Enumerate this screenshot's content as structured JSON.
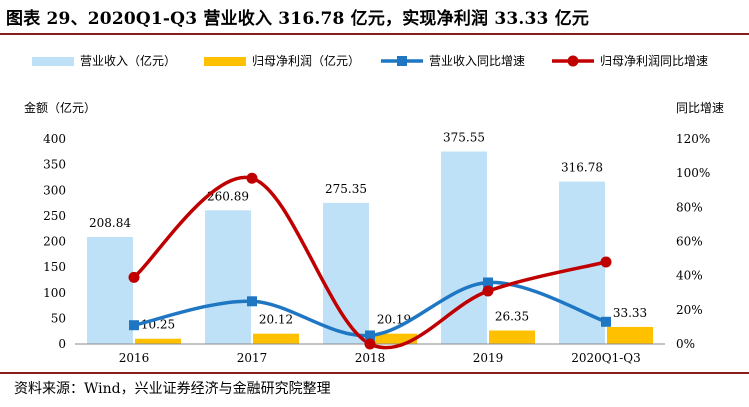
{
  "title": "图表 29、2020Q1-Q3 营业收入 316.78 亿元，实现净利润 33.33 亿元",
  "source": "资料来源：Wind，兴业证券经济与金融研究院整理",
  "colors": {
    "revenue_bar": "#bfe1f7",
    "profit_bar": "#ffc000",
    "revenue_growth_line": "#1f77c4",
    "profit_growth_line": "#c00000",
    "rule": "#8a1c1c"
  },
  "chart_data": {
    "type": "bar",
    "categories": [
      "2016",
      "2017",
      "2018",
      "2019",
      "2020Q1-Q3"
    ],
    "left_axis_label": "金额（亿元）",
    "right_axis_label": "同比增速",
    "left_ticks": [
      "0",
      "50",
      "100",
      "150",
      "200",
      "250",
      "300",
      "350",
      "400"
    ],
    "right_ticks": [
      "0%",
      "20%",
      "40%",
      "60%",
      "80%",
      "100%",
      "120%"
    ],
    "ylim": [
      0,
      400
    ],
    "y2lim": [
      0,
      120
    ],
    "legend_position": "top",
    "series": [
      {
        "name": "营业收入（亿元）",
        "kind": "bar",
        "axis": "left",
        "values": [
          208.84,
          260.89,
          275.35,
          375.55,
          316.78
        ],
        "labels": [
          "208.84",
          "260.89",
          "275.35",
          "375.55",
          "316.78"
        ]
      },
      {
        "name": "归母净利润（亿元）",
        "kind": "bar",
        "axis": "left",
        "values": [
          10.25,
          20.12,
          20.19,
          26.35,
          33.33
        ],
        "labels": [
          "10.25",
          "20.12",
          "20.19",
          "26.35",
          "33.33"
        ]
      },
      {
        "name": "营业收入同比增速",
        "kind": "line",
        "marker": "square",
        "axis": "right",
        "values": [
          11,
          25,
          5,
          36,
          13
        ]
      },
      {
        "name": "归母净利润同比增速",
        "kind": "line",
        "marker": "circle",
        "axis": "right",
        "values": [
          39,
          97,
          0,
          31,
          48
        ]
      }
    ]
  }
}
